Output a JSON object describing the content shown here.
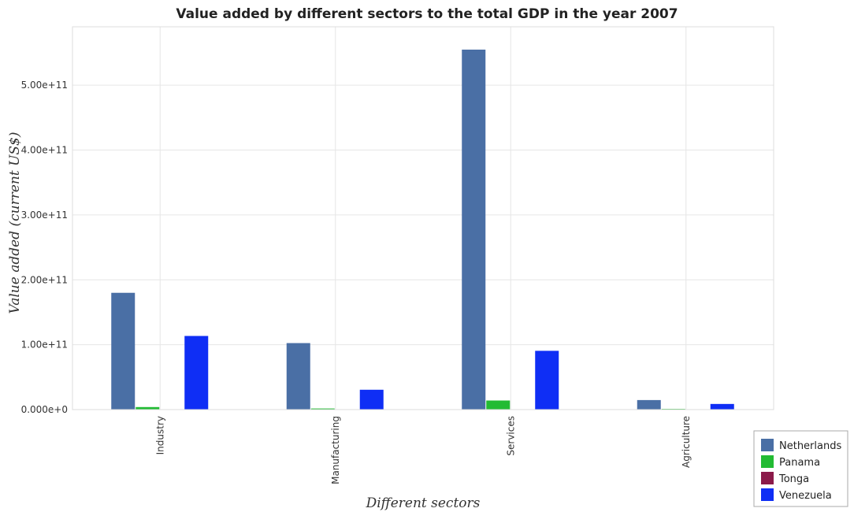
{
  "chart_data": {
    "type": "bar",
    "title": "Value added by different sectors to the total GDP in the year 2007",
    "xlabel": "Different sectors",
    "ylabel": "Value added (current US$)",
    "categories": [
      "Industry",
      "Manufacturing",
      "Services",
      "Agriculture"
    ],
    "series": [
      {
        "name": "Netherlands",
        "color": "#4a6fa5",
        "values": [
          180000000000,
          102500000000,
          554800000000,
          14700000000
        ]
      },
      {
        "name": "Panama",
        "color": "#22bb33",
        "values": [
          3900000000,
          1700000000,
          14000000000,
          1100000000
        ]
      },
      {
        "name": "Tonga",
        "color": "#8b1a4a",
        "values": [
          50000000,
          20000000,
          140000000,
          60000000
        ]
      },
      {
        "name": "Venezuela",
        "color": "#0f2ef5",
        "values": [
          113500000000,
          30600000000,
          90600000000,
          8700000000
        ]
      }
    ],
    "ylim": [
      0,
      590000000000
    ],
    "yticks": [
      0,
      100000000000,
      200000000000,
      300000000000,
      400000000000,
      500000000000
    ],
    "ytick_labels": [
      "0.000e+0",
      "1.00e+11",
      "2.00e+11",
      "3.00e+11",
      "4.00e+11",
      "5.00e+11"
    ],
    "grid": true,
    "legend_position": "bottom-right"
  }
}
